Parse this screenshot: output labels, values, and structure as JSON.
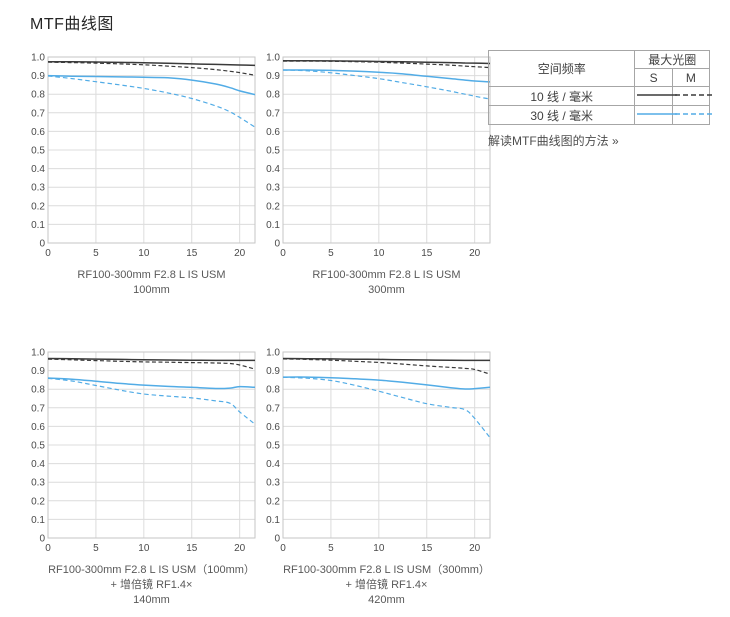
{
  "page": {
    "title": "MTF曲线图"
  },
  "legend": {
    "header_spatial": "空间频率",
    "header_aperture": "最大光圈",
    "header_s": "S",
    "header_m": "M",
    "rows": [
      {
        "label": "10 线 / 毫米",
        "s": {
          "color": "#3a3a3a",
          "dashed": false
        },
        "m": {
          "color": "#3a3a3a",
          "dashed": true
        }
      },
      {
        "label": "30 线 / 毫米",
        "s": {
          "color": "#52ace6",
          "dashed": false
        },
        "m": {
          "color": "#52ace6",
          "dashed": true
        }
      }
    ],
    "link": "解读MTF曲线图的方法 »"
  },
  "colors": {
    "black_line": "#3a3a3a",
    "blue_line": "#52ace6",
    "grid": "#dcdcdc",
    "plot_border": "#c6c6c6",
    "tick_text": "#4a4a4a"
  },
  "chart_data": [
    {
      "type": "line",
      "caption_lines": [
        "RF100-300mm F2.8 L IS USM",
        "100mm"
      ],
      "xlabel": "",
      "ylabel": "",
      "xlim": [
        0,
        21.6
      ],
      "ylim": [
        0,
        1.0
      ],
      "xticks": [
        0,
        5,
        10,
        15,
        20
      ],
      "yticks": [
        0,
        0.1,
        0.2,
        0.3,
        0.4,
        0.5,
        0.6,
        0.7,
        0.8,
        0.9,
        1.0
      ],
      "x": [
        0,
        2.5,
        5,
        7.5,
        10,
        12.5,
        15,
        17.5,
        19,
        20,
        21.6
      ],
      "series": [
        {
          "key": "10-s",
          "name": "10 线/毫米 S",
          "color": "#3a3a3a",
          "dashed": false,
          "values": [
            0.975,
            0.974,
            0.973,
            0.971,
            0.969,
            0.966,
            0.963,
            0.96,
            0.958,
            0.957,
            0.955
          ]
        },
        {
          "key": "10-m",
          "name": "10 线/毫米 M",
          "color": "#3a3a3a",
          "dashed": true,
          "values": [
            0.972,
            0.97,
            0.967,
            0.963,
            0.958,
            0.951,
            0.943,
            0.932,
            0.923,
            0.916,
            0.902
          ]
        },
        {
          "key": "30-s",
          "name": "30 线/毫米 S",
          "color": "#52ace6",
          "dashed": false,
          "values": [
            0.9,
            0.897,
            0.895,
            0.893,
            0.891,
            0.888,
            0.876,
            0.855,
            0.835,
            0.818,
            0.798
          ]
        },
        {
          "key": "30-m",
          "name": "30 线/毫米 M",
          "color": "#52ace6",
          "dashed": true,
          "values": [
            0.898,
            0.884,
            0.867,
            0.85,
            0.831,
            0.807,
            0.777,
            0.737,
            0.705,
            0.675,
            0.623
          ]
        }
      ]
    },
    {
      "type": "line",
      "caption_lines": [
        "RF100-300mm F2.8 L IS USM",
        "300mm"
      ],
      "xlabel": "",
      "ylabel": "",
      "xlim": [
        0,
        21.6
      ],
      "ylim": [
        0,
        1.0
      ],
      "xticks": [
        0,
        5,
        10,
        15,
        20
      ],
      "yticks": [
        0,
        0.1,
        0.2,
        0.3,
        0.4,
        0.5,
        0.6,
        0.7,
        0.8,
        0.9,
        1.0
      ],
      "x": [
        0,
        2.5,
        5,
        7.5,
        10,
        12.5,
        15,
        17.5,
        19,
        20,
        21.6
      ],
      "series": [
        {
          "key": "10-s",
          "name": "10 线/毫米 S",
          "color": "#3a3a3a",
          "dashed": false,
          "values": [
            0.98,
            0.98,
            0.979,
            0.978,
            0.976,
            0.974,
            0.972,
            0.97,
            0.968,
            0.967,
            0.965
          ]
        },
        {
          "key": "10-m",
          "name": "10 线/毫米 M",
          "color": "#3a3a3a",
          "dashed": true,
          "values": [
            0.978,
            0.978,
            0.977,
            0.975,
            0.972,
            0.967,
            0.962,
            0.956,
            0.951,
            0.948,
            0.943
          ]
        },
        {
          "key": "30-s",
          "name": "30 线/毫米 S",
          "color": "#52ace6",
          "dashed": false,
          "values": [
            0.93,
            0.93,
            0.928,
            0.924,
            0.918,
            0.909,
            0.896,
            0.884,
            0.876,
            0.871,
            0.866
          ]
        },
        {
          "key": "30-m",
          "name": "30 线/毫米 M",
          "color": "#52ace6",
          "dashed": true,
          "values": [
            0.93,
            0.926,
            0.915,
            0.9,
            0.884,
            0.862,
            0.84,
            0.816,
            0.8,
            0.789,
            0.774
          ]
        }
      ]
    },
    {
      "type": "line",
      "caption_lines": [
        "RF100-300mm F2.8 L IS USM（100mm）",
        "+ 增倍镜 RF1.4×",
        "140mm"
      ],
      "xlabel": "",
      "ylabel": "",
      "xlim": [
        0,
        21.6
      ],
      "ylim": [
        0,
        1.0
      ],
      "xticks": [
        0,
        5,
        10,
        15,
        20
      ],
      "yticks": [
        0,
        0.1,
        0.2,
        0.3,
        0.4,
        0.5,
        0.6,
        0.7,
        0.8,
        0.9,
        1.0
      ],
      "x": [
        0,
        2.5,
        5,
        7.5,
        10,
        12.5,
        15,
        17.5,
        19,
        20,
        21.6
      ],
      "series": [
        {
          "key": "10-s",
          "name": "10 线/毫米 S",
          "color": "#3a3a3a",
          "dashed": false,
          "values": [
            0.965,
            0.964,
            0.962,
            0.96,
            0.958,
            0.957,
            0.956,
            0.955,
            0.955,
            0.955,
            0.955
          ]
        },
        {
          "key": "10-m",
          "name": "10 线/毫米 M",
          "color": "#3a3a3a",
          "dashed": true,
          "values": [
            0.962,
            0.958,
            0.954,
            0.95,
            0.947,
            0.945,
            0.943,
            0.941,
            0.938,
            0.93,
            0.908
          ]
        },
        {
          "key": "30-s",
          "name": "30 线/毫米 S",
          "color": "#52ace6",
          "dashed": false,
          "values": [
            0.86,
            0.854,
            0.843,
            0.831,
            0.822,
            0.815,
            0.81,
            0.804,
            0.806,
            0.814,
            0.81
          ]
        },
        {
          "key": "30-m",
          "name": "30 线/毫米 M",
          "color": "#52ace6",
          "dashed": true,
          "values": [
            0.858,
            0.844,
            0.82,
            0.795,
            0.774,
            0.763,
            0.753,
            0.737,
            0.724,
            0.678,
            0.612
          ]
        }
      ]
    },
    {
      "type": "line",
      "caption_lines": [
        "RF100-300mm F2.8 L IS USM（300mm）",
        "+ 增倍镜 RF1.4×",
        "420mm"
      ],
      "xlabel": "",
      "ylabel": "",
      "xlim": [
        0,
        21.6
      ],
      "ylim": [
        0,
        1.0
      ],
      "xticks": [
        0,
        5,
        10,
        15,
        20
      ],
      "yticks": [
        0,
        0.1,
        0.2,
        0.3,
        0.4,
        0.5,
        0.6,
        0.7,
        0.8,
        0.9,
        1.0
      ],
      "x": [
        0,
        2.5,
        5,
        7.5,
        10,
        12.5,
        15,
        17.5,
        19,
        20,
        21.6
      ],
      "series": [
        {
          "key": "10-s",
          "name": "10 线/毫米 S",
          "color": "#3a3a3a",
          "dashed": false,
          "values": [
            0.965,
            0.964,
            0.963,
            0.961,
            0.96,
            0.958,
            0.957,
            0.956,
            0.955,
            0.955,
            0.955
          ]
        },
        {
          "key": "10-m",
          "name": "10 线/毫米 M",
          "color": "#3a3a3a",
          "dashed": true,
          "values": [
            0.963,
            0.96,
            0.956,
            0.95,
            0.944,
            0.935,
            0.925,
            0.917,
            0.912,
            0.906,
            0.881
          ]
        },
        {
          "key": "30-s",
          "name": "30 线/毫米 S",
          "color": "#52ace6",
          "dashed": false,
          "values": [
            0.865,
            0.865,
            0.862,
            0.856,
            0.849,
            0.837,
            0.823,
            0.808,
            0.801,
            0.803,
            0.81
          ]
        },
        {
          "key": "30-m",
          "name": "30 线/毫米 M",
          "color": "#52ace6",
          "dashed": true,
          "values": [
            0.864,
            0.859,
            0.847,
            0.821,
            0.789,
            0.755,
            0.722,
            0.702,
            0.69,
            0.643,
            0.54
          ]
        }
      ]
    }
  ]
}
